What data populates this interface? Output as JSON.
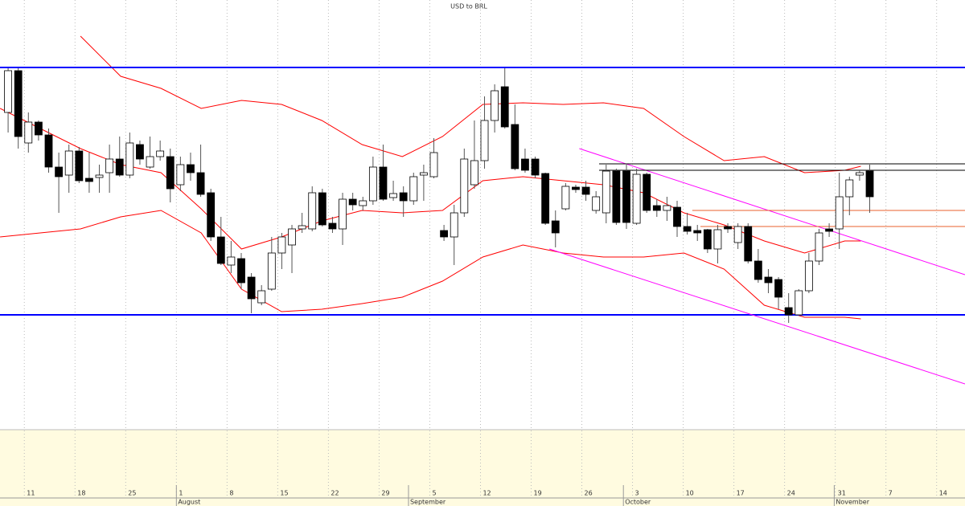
{
  "chart_data": {
    "type": "candlestick",
    "title": "USD to BRL",
    "categories": [
      null,
      null,
      null,
      null,
      null,
      null,
      null,
      null,
      null,
      null,
      null,
      null,
      null,
      null,
      null,
      null,
      null,
      null,
      null,
      null,
      null,
      null,
      null,
      null,
      null,
      null,
      null,
      null,
      null,
      null,
      null,
      null,
      null,
      null,
      null,
      null,
      null,
      null,
      null,
      null,
      null,
      null,
      null,
      null,
      null,
      null,
      null,
      null,
      null,
      null,
      null,
      null,
      null,
      null,
      null,
      null,
      null,
      null,
      null,
      null,
      null,
      null,
      null,
      null,
      null,
      null,
      null,
      null,
      null,
      null,
      null,
      null,
      null,
      null,
      null,
      null,
      null,
      null,
      null,
      null,
      null,
      null,
      null,
      null,
      null,
      null
    ],
    "open": [
      4.02,
      4.124,
      3.944,
      3.996,
      3.964,
      3.884,
      3.864,
      3.924,
      3.856,
      3.858,
      3.87,
      3.904,
      3.864,
      3.94,
      3.884,
      3.91,
      3.91,
      3.84,
      3.89,
      3.87,
      3.82,
      3.71,
      3.64,
      3.656,
      3.61,
      3.546,
      3.58,
      3.67,
      3.69,
      3.73,
      3.73,
      3.82,
      3.744,
      3.73,
      3.804,
      3.788,
      3.8,
      3.884,
      3.808,
      3.82,
      3.8,
      3.864,
      3.86,
      3.726,
      3.71,
      3.77,
      3.84,
      3.9,
      4.0,
      4.084,
      3.99,
      3.904,
      3.904,
      3.868,
      3.75,
      3.78,
      3.834,
      3.834,
      3.776,
      3.77,
      3.874,
      3.874,
      3.744,
      3.866,
      3.788,
      3.776,
      3.784,
      3.736,
      3.726,
      3.728,
      3.68,
      3.736,
      3.696,
      3.736,
      3.65,
      3.61,
      3.604,
      3.534,
      3.516,
      3.576,
      3.65,
      3.73,
      3.73,
      3.81,
      3.864,
      3.874
    ],
    "high": [
      4.13,
      4.13,
      4.02,
      4.0,
      3.98,
      3.92,
      3.94,
      3.934,
      3.92,
      3.89,
      3.94,
      3.96,
      3.97,
      3.95,
      3.96,
      3.95,
      3.93,
      3.91,
      3.92,
      3.94,
      3.83,
      3.76,
      3.7,
      3.67,
      3.62,
      3.59,
      3.71,
      3.72,
      3.74,
      3.77,
      3.836,
      3.83,
      3.76,
      3.82,
      3.82,
      3.81,
      3.91,
      3.94,
      3.85,
      3.836,
      3.87,
      3.89,
      3.956,
      3.74,
      3.79,
      3.93,
      4.0,
      4.06,
      4.09,
      4.13,
      4.04,
      3.93,
      3.91,
      3.87,
      3.776,
      3.844,
      3.84,
      3.85,
      3.824,
      3.89,
      3.88,
      3.89,
      3.88,
      3.87,
      3.804,
      3.81,
      3.8,
      3.77,
      3.74,
      3.73,
      3.74,
      3.744,
      3.744,
      3.744,
      3.68,
      3.63,
      3.61,
      3.57,
      3.58,
      3.67,
      3.73,
      3.744,
      3.87,
      3.86,
      3.876,
      3.89
    ],
    "low": [
      3.97,
      3.93,
      3.92,
      3.95,
      3.87,
      3.77,
      3.82,
      3.844,
      3.82,
      3.82,
      3.82,
      3.86,
      3.856,
      3.89,
      3.88,
      3.9,
      3.796,
      3.824,
      3.85,
      3.81,
      3.7,
      3.64,
      3.62,
      3.58,
      3.52,
      3.54,
      3.576,
      3.63,
      3.62,
      3.72,
      3.724,
      3.736,
      3.72,
      3.69,
      3.776,
      3.776,
      3.79,
      3.8,
      3.8,
      3.76,
      3.79,
      3.8,
      3.856,
      3.7,
      3.64,
      3.76,
      3.83,
      3.88,
      3.97,
      3.98,
      3.876,
      3.87,
      3.856,
      3.74,
      3.684,
      3.776,
      3.82,
      3.8,
      3.768,
      3.744,
      3.74,
      3.73,
      3.74,
      3.77,
      3.76,
      3.75,
      3.71,
      3.716,
      3.7,
      3.67,
      3.644,
      3.72,
      3.68,
      3.644,
      3.596,
      3.57,
      3.53,
      3.496,
      3.514,
      3.57,
      3.64,
      3.71,
      3.68,
      3.764,
      3.85,
      3.77
    ],
    "close": [
      4.124,
      3.96,
      3.996,
      3.964,
      3.884,
      3.86,
      3.924,
      3.85,
      3.848,
      3.864,
      3.904,
      3.864,
      3.944,
      3.904,
      3.91,
      3.924,
      3.83,
      3.89,
      3.87,
      3.816,
      3.71,
      3.644,
      3.66,
      3.596,
      3.556,
      3.576,
      3.67,
      3.71,
      3.73,
      3.738,
      3.82,
      3.74,
      3.73,
      3.804,
      3.79,
      3.8,
      3.884,
      3.804,
      3.818,
      3.8,
      3.86,
      3.87,
      3.92,
      3.71,
      3.77,
      3.904,
      3.9,
      4.0,
      4.074,
      3.984,
      3.88,
      3.876,
      3.864,
      3.744,
      3.72,
      3.836,
      3.828,
      3.816,
      3.81,
      3.874,
      3.746,
      3.746,
      3.866,
      3.776,
      3.776,
      3.788,
      3.736,
      3.724,
      3.72,
      3.68,
      3.728,
      3.73,
      3.736,
      3.65,
      3.604,
      3.596,
      3.56,
      3.516,
      3.576,
      3.65,
      3.72,
      3.724,
      3.81,
      3.852,
      3.87,
      3.81
    ],
    "xlim": [
      -0.8,
      94.4
    ],
    "ylim": [
      3.23,
      4.3
    ],
    "xticks": [
      {
        "value": 1.6,
        "label": "11"
      },
      {
        "value": 6.6,
        "label": "18"
      },
      {
        "value": 11.6,
        "label": "25"
      },
      {
        "value": 16.6,
        "label": "1"
      },
      {
        "value": 21.6,
        "label": "8"
      },
      {
        "value": 26.6,
        "label": "15"
      },
      {
        "value": 31.6,
        "label": "22"
      },
      {
        "value": 36.6,
        "label": "29"
      },
      {
        "value": 41.6,
        "label": "5"
      },
      {
        "value": 46.6,
        "label": "12"
      },
      {
        "value": 51.6,
        "label": "19"
      },
      {
        "value": 56.6,
        "label": "26"
      },
      {
        "value": 61.6,
        "label": "3"
      },
      {
        "value": 66.6,
        "label": "10"
      },
      {
        "value": 71.6,
        "label": "17"
      },
      {
        "value": 76.6,
        "label": "24"
      },
      {
        "value": 81.6,
        "label": "31"
      },
      {
        "value": 86.6,
        "label": "7"
      },
      {
        "value": 91.6,
        "label": "14"
      }
    ],
    "month_ticks": [
      {
        "value": 16.6,
        "label": "August"
      },
      {
        "value": 39.5,
        "label": "September"
      },
      {
        "value": 60.7,
        "label": "October"
      },
      {
        "value": 81.5,
        "label": "November"
      }
    ],
    "grid": true,
    "up_color": "#ffffff",
    "down_color": "#000000",
    "overlays": [
      {
        "color": "#ff0000",
        "x": [
          -0.79,
          3.17,
          7.14,
          11.11,
          15.08,
          19.05,
          23.02,
          26.98,
          30.95,
          34.92,
          38.89,
          42.86,
          46.83,
          50.79,
          54.76,
          58.73,
          62.7,
          66.67,
          70.63,
          74.6,
          78.57,
          82.54,
          84.13
        ],
        "values": [
          null,
          null,
          4.21,
          4.11,
          4.08,
          4.03,
          4.05,
          4.04,
          4.0,
          3.94,
          3.91,
          3.96,
          4.04,
          4.044,
          4.04,
          4.044,
          4.03,
          3.96,
          3.9,
          3.91,
          3.87,
          3.876,
          3.886
        ]
      },
      {
        "color": "#ff0000",
        "x": [
          -0.79,
          3.17,
          7.14,
          11.11,
          15.08,
          19.05,
          23.02,
          26.98,
          30.95,
          34.92,
          38.89,
          42.86,
          46.83,
          50.79,
          54.76,
          58.73,
          62.7,
          66.67,
          70.63,
          74.6,
          78.57,
          82.54,
          84.13
        ],
        "values": [
          4.03,
          3.98,
          3.93,
          3.89,
          3.87,
          3.78,
          3.68,
          3.71,
          3.75,
          3.776,
          3.77,
          3.776,
          3.85,
          3.86,
          3.85,
          3.84,
          3.82,
          3.77,
          3.74,
          3.7,
          3.67,
          3.7,
          3.7
        ]
      },
      {
        "color": "#ff0000",
        "x": [
          -0.79,
          3.17,
          7.14,
          11.11,
          15.08,
          19.05,
          23.02,
          26.98,
          30.95,
          34.92,
          38.89,
          42.86,
          46.83,
          50.79,
          54.76,
          58.73,
          62.7,
          66.67,
          70.63,
          74.6,
          78.57,
          82.54,
          84.13
        ],
        "values": [
          3.71,
          3.72,
          3.73,
          3.76,
          3.776,
          3.72,
          3.58,
          3.524,
          3.53,
          3.544,
          3.56,
          3.6,
          3.66,
          3.69,
          3.67,
          3.66,
          3.66,
          3.67,
          3.63,
          3.54,
          3.51,
          3.51,
          3.506
        ]
      },
      {
        "color": "#0000ff",
        "x": [
          -0.8,
          94.4
        ],
        "values": [
          4.132,
          4.132
        ],
        "width": 2
      },
      {
        "color": "#0000ff",
        "x": [
          -0.8,
          94.4
        ],
        "values": [
          3.516,
          3.516
        ],
        "width": 2
      },
      {
        "color": "#ff00ff",
        "x": [
          56.35,
          94.4
        ],
        "values": [
          3.93,
          3.616
        ]
      },
      {
        "color": "#ff00ff",
        "x": [
          53.4,
          94.4
        ],
        "values": [
          3.68,
          3.344
        ]
      },
      {
        "color": "#000000",
        "x": [
          58.3,
          94.4
        ],
        "values": [
          3.892,
          3.892
        ]
      },
      {
        "color": "#000000",
        "x": [
          58.3,
          94.4
        ],
        "values": [
          3.876,
          3.876
        ]
      },
      {
        "color": "#e8602c",
        "x": [
          67.5,
          94.4
        ],
        "values": [
          3.776,
          3.776
        ]
      },
      {
        "color": "#e8602c",
        "x": [
          68.3,
          94.4
        ],
        "values": [
          3.736,
          3.736
        ]
      }
    ]
  }
}
